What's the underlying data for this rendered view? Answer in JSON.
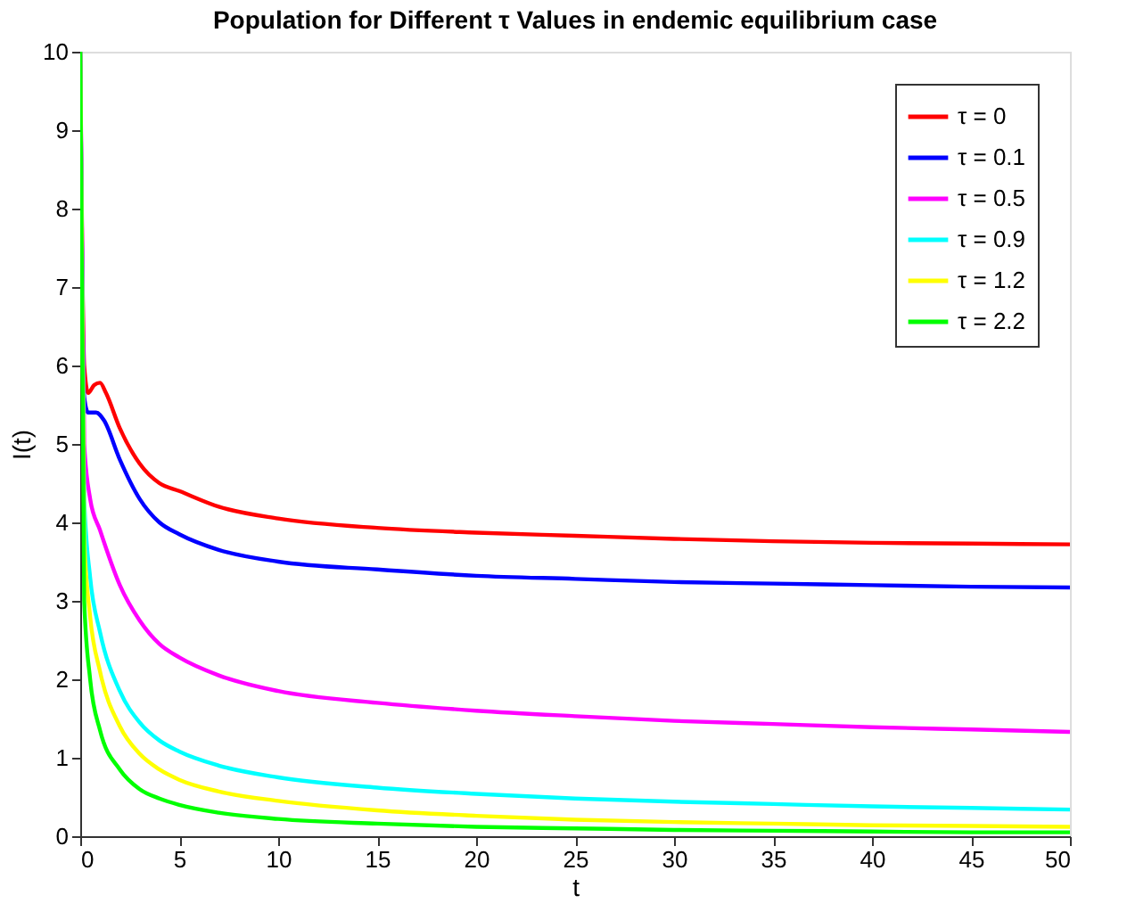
{
  "chart_data": {
    "type": "line",
    "title": "Population for Different τ Values in endemic equilibrium case",
    "xlabel": "t",
    "ylabel": "I(t)",
    "xlim": [
      0,
      50
    ],
    "xticks": [
      0,
      5,
      10,
      15,
      20,
      25,
      30,
      35,
      40,
      45,
      50
    ],
    "ylim": [
      0,
      10
    ],
    "yticks": [
      0,
      1,
      2,
      3,
      4,
      5,
      6,
      7,
      8,
      9,
      10
    ],
    "grid": false,
    "legend": "top right",
    "marker": "none",
    "line_style": "solid",
    "series": [
      {
        "name": "τ = 0",
        "color": "#ff0000",
        "x": [
          0,
          0.2,
          0.4,
          0.7,
          1,
          1.3,
          2,
          3,
          4,
          5,
          7,
          10,
          15,
          20,
          25,
          30,
          35,
          40,
          45,
          50
        ],
        "values": [
          10,
          6.0,
          5.65,
          5.75,
          5.78,
          5.65,
          5.2,
          4.75,
          4.5,
          4.4,
          4.2,
          4.05,
          3.93,
          3.87,
          3.83,
          3.79,
          3.76,
          3.74,
          3.73,
          3.72
        ]
      },
      {
        "name": "τ = 0.1",
        "color": "#0000ff",
        "x": [
          0,
          0.2,
          0.4,
          0.8,
          1.2,
          2,
          3,
          4,
          5,
          7,
          10,
          15,
          20,
          25,
          30,
          35,
          40,
          45,
          50
        ],
        "values": [
          10,
          5.6,
          5.4,
          5.4,
          5.3,
          4.8,
          4.3,
          4.0,
          3.85,
          3.65,
          3.5,
          3.4,
          3.32,
          3.28,
          3.24,
          3.22,
          3.2,
          3.18,
          3.17
        ]
      },
      {
        "name": "τ = 0.5",
        "color": "#ff00ff",
        "x": [
          0,
          0.2,
          0.5,
          1,
          2,
          3,
          4,
          5,
          7,
          10,
          15,
          20,
          25,
          30,
          35,
          40,
          45,
          50
        ],
        "values": [
          10,
          5.0,
          4.3,
          3.9,
          3.2,
          2.75,
          2.45,
          2.28,
          2.05,
          1.85,
          1.7,
          1.6,
          1.53,
          1.47,
          1.43,
          1.39,
          1.36,
          1.33
        ]
      },
      {
        "name": "τ = 0.9",
        "color": "#00ffff",
        "x": [
          0,
          0.2,
          0.5,
          1,
          2,
          3,
          4,
          5,
          7,
          10,
          15,
          20,
          25,
          30,
          35,
          40,
          45,
          50
        ],
        "values": [
          10,
          4.3,
          3.3,
          2.6,
          1.85,
          1.45,
          1.22,
          1.08,
          0.9,
          0.75,
          0.62,
          0.54,
          0.48,
          0.44,
          0.41,
          0.38,
          0.36,
          0.34
        ]
      },
      {
        "name": "τ = 1.2",
        "color": "#ffff00",
        "x": [
          0,
          0.2,
          0.5,
          1,
          2,
          3,
          4,
          5,
          7,
          10,
          15,
          20,
          25,
          30,
          35,
          40,
          45,
          50
        ],
        "values": [
          10,
          3.8,
          2.8,
          2.1,
          1.4,
          1.05,
          0.85,
          0.72,
          0.57,
          0.45,
          0.33,
          0.26,
          0.21,
          0.18,
          0.16,
          0.14,
          0.13,
          0.12
        ]
      },
      {
        "name": "τ = 2.2",
        "color": "#00ff00",
        "x": [
          0,
          0.2,
          0.5,
          1,
          2,
          3,
          4,
          5,
          7,
          10,
          15,
          20,
          25,
          30,
          35,
          40,
          45,
          50
        ],
        "values": [
          10,
          3.0,
          2.0,
          1.35,
          0.85,
          0.6,
          0.48,
          0.4,
          0.3,
          0.22,
          0.16,
          0.12,
          0.1,
          0.08,
          0.07,
          0.06,
          0.05,
          0.05
        ]
      }
    ]
  }
}
